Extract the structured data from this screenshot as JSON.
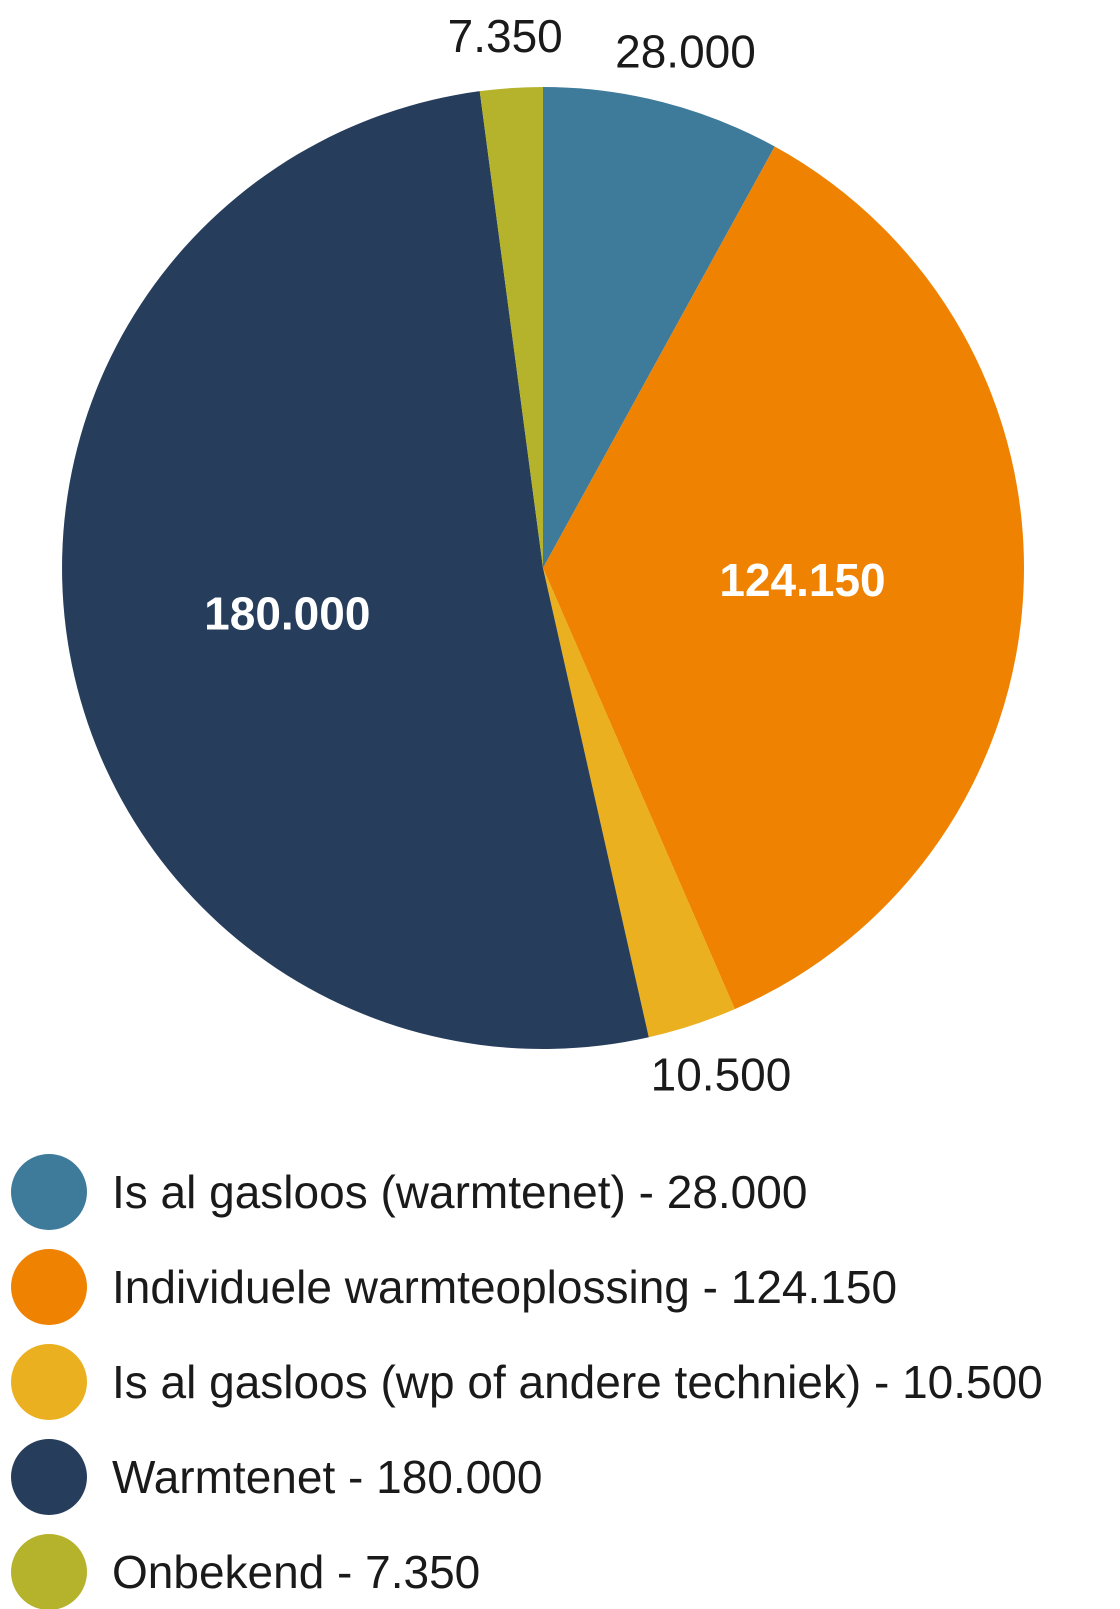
{
  "chart_data": {
    "type": "pie",
    "title": "",
    "start_angle_deg": 0,
    "direction": "clockwise",
    "slices": [
      {
        "label": "Is al gasloos (warmtenet)",
        "value": 28000,
        "value_label": "28.000",
        "legend_text": "Is al gasloos (warmtenet) - 28.000",
        "color": "#3e7b9b",
        "label_placement": "outside",
        "label_color": "#1a1a1a"
      },
      {
        "label": "Individuele warmteoplossing",
        "value": 124150,
        "value_label": "124.150",
        "legend_text": "Individuele warmteoplossing - 124.150",
        "color": "#ef8200",
        "label_placement": "inside",
        "label_color": "#ffffff"
      },
      {
        "label": "Is al gasloos (wp of andere techniek)",
        "value": 10500,
        "value_label": "10.500",
        "legend_text": "Is al gasloos (wp of andere techniek) - 10.500",
        "color": "#ebb01f",
        "label_placement": "outside",
        "label_color": "#1a1a1a"
      },
      {
        "label": "Warmtenet",
        "value": 180000,
        "value_label": "180.000",
        "legend_text": "Warmtenet - 180.000",
        "color": "#263d5c",
        "label_placement": "inside",
        "label_color": "#ffffff"
      },
      {
        "label": "Onbekend",
        "value": 7350,
        "value_label": "7.350",
        "legend_text": "Onbekend - 7.350",
        "color": "#b5b22c",
        "label_placement": "outside",
        "label_color": "#1a1a1a"
      }
    ],
    "legend_position": "bottom-left"
  }
}
